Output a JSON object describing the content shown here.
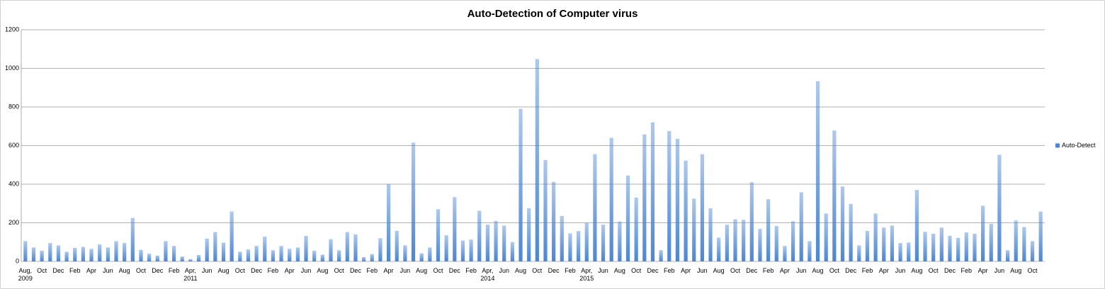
{
  "chart_data": {
    "type": "bar",
    "title": "Auto-Detection of Computer virus",
    "categories": [
      "Aug, 2009",
      null,
      "Oct",
      null,
      "Dec",
      null,
      "Feb",
      null,
      "Apr",
      null,
      "Jun",
      null,
      "Aug",
      null,
      "Oct",
      null,
      "Dec",
      null,
      "Feb",
      null,
      "Apr, 2011",
      null,
      "Jun",
      null,
      "Aug",
      null,
      "Oct",
      null,
      "Dec",
      null,
      "Feb",
      null,
      "Apr",
      null,
      "Jun",
      null,
      "Aug",
      null,
      "Oct",
      null,
      "Dec",
      null,
      "Feb",
      null,
      "Apr",
      null,
      "Jun",
      null,
      "Aug",
      null,
      "Oct",
      null,
      "Dec",
      null,
      "Feb",
      null,
      "Apr, 2014",
      null,
      "Jun",
      null,
      "Aug",
      null,
      "Oct",
      null,
      "Dec",
      null,
      "Feb",
      null,
      "Apr, 2015",
      null,
      "Jun",
      null,
      "Aug",
      null,
      "Oct",
      null,
      "Dec",
      null,
      "Feb",
      null,
      "Apr",
      null,
      "Jun",
      null,
      "Aug",
      null,
      "Oct",
      null,
      "Dec",
      null,
      "Feb",
      null,
      "Apr",
      null,
      "Jun",
      null,
      "Aug",
      null,
      "Oct",
      null,
      "Dec",
      null,
      "Feb",
      null,
      "Apr",
      null,
      "Jun",
      null,
      "Aug",
      null,
      "Oct",
      null,
      "Dec",
      null,
      "Feb",
      null,
      "Apr",
      null,
      "Jun",
      null,
      "Aug",
      null,
      "Oct",
      null
    ],
    "series": [
      {
        "name": "Auto-Detect",
        "color": "#4a86d8",
        "values": [
          105,
          72,
          55,
          95,
          83,
          50,
          70,
          75,
          65,
          88,
          72,
          105,
          95,
          225,
          60,
          40,
          30,
          105,
          80,
          25,
          12,
          33,
          118,
          152,
          97,
          258,
          50,
          62,
          80,
          128,
          58,
          80,
          65,
          72,
          132,
          55,
          35,
          115,
          58,
          152,
          140,
          22,
          38,
          120,
          400,
          158,
          83,
          615,
          42,
          72,
          270,
          135,
          333,
          108,
          113,
          262,
          190,
          210,
          185,
          100,
          790,
          275,
          1048,
          525,
          412,
          235,
          145,
          157,
          200,
          555,
          190,
          640,
          207,
          445,
          330,
          658,
          720,
          58,
          675,
          635,
          522,
          325,
          555,
          275,
          123,
          190,
          218,
          215,
          410,
          168,
          322,
          183,
          80,
          208,
          358,
          105,
          933,
          248,
          678,
          388,
          298,
          83,
          158,
          248,
          175,
          185,
          95,
          98,
          370,
          153,
          143,
          175,
          133,
          122,
          150,
          143,
          288,
          195,
          552,
          58,
          212,
          178,
          105,
          258
        ]
      }
    ],
    "ylim": [
      0,
      1200
    ],
    "yticks": [
      0,
      200,
      400,
      600,
      800,
      1000,
      1200
    ],
    "grid": true,
    "legend": "right"
  }
}
